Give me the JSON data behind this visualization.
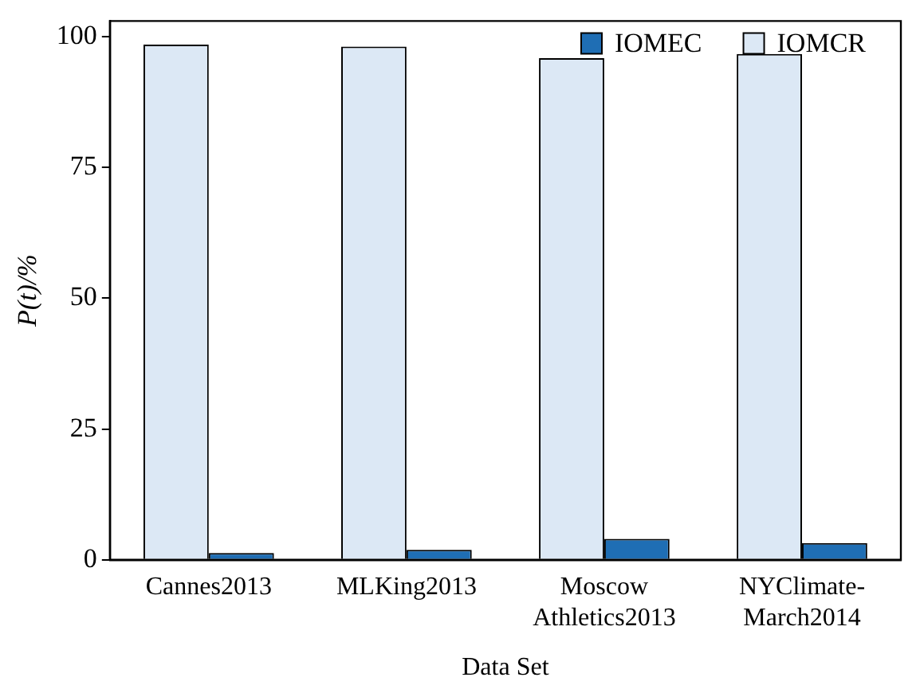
{
  "chart_data": {
    "type": "bar",
    "xlabel": "Data Set",
    "ylabel": "P(t)/%",
    "categories": [
      "Cannes2013",
      "MLKing2013",
      "Moscow Athletics2013",
      "NYClimate-March2014"
    ],
    "series": [
      {
        "name": "IOMCR",
        "color": "#dce8f5",
        "values": [
          98.5,
          98.1,
          95.9,
          96.7
        ]
      },
      {
        "name": "IOMEC",
        "color": "#1f6eb4",
        "values": [
          1.3,
          1.9,
          4.0,
          3.2
        ]
      }
    ],
    "ylim": [
      0,
      103
    ],
    "yticks": [
      0,
      25,
      50,
      75,
      100
    ],
    "grid": false,
    "legend": "top right"
  }
}
